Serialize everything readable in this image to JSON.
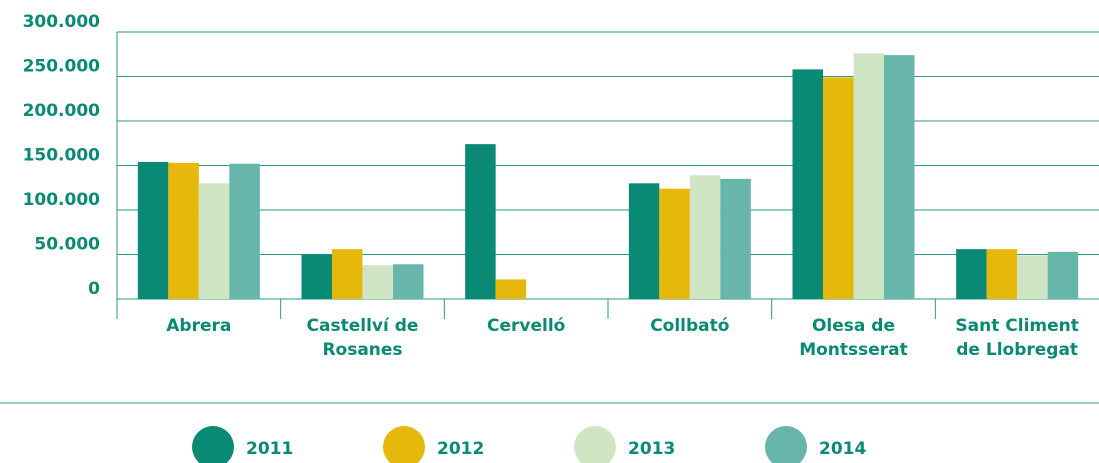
{
  "chart_data": {
    "type": "bar",
    "categories": [
      "Abrera",
      "Castellví de Rosanes",
      "Cervelló",
      "Collbató",
      "Olesa de Montsserat",
      "Sant Climent de Llobregat"
    ],
    "series": [
      {
        "name": "2011",
        "color": "#0a8a74",
        "values": [
          154000,
          50000,
          174000,
          130000,
          258000,
          56000
        ]
      },
      {
        "name": "2012",
        "color": "#e6b80c",
        "values": [
          153000,
          56000,
          22000,
          124000,
          249000,
          56000
        ]
      },
      {
        "name": "2013",
        "color": "#cfe5c4",
        "values": [
          130000,
          38000,
          null,
          139000,
          276000,
          49000
        ]
      },
      {
        "name": "2014",
        "color": "#67b5ab",
        "values": [
          152000,
          39000,
          null,
          135000,
          274000,
          53000
        ]
      }
    ],
    "ylim": [
      0,
      300000
    ],
    "yticks": [
      0,
      {
        "value": 50000,
        "label": "50.000"
      },
      {
        "value": 100000,
        "label": "100.000"
      },
      {
        "value": 150000,
        "label": "150.000"
      },
      {
        "value": 200000,
        "label": "200.000"
      },
      {
        "value": 250000,
        "label": "250.000"
      },
      {
        "value": 300000,
        "label": "300.000"
      }
    ],
    "grid": true
  }
}
